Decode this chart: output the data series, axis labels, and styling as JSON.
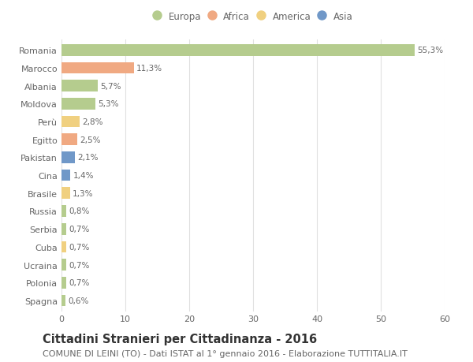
{
  "countries": [
    "Romania",
    "Marocco",
    "Albania",
    "Moldova",
    "Perù",
    "Egitto",
    "Pakistan",
    "Cina",
    "Brasile",
    "Russia",
    "Serbia",
    "Cuba",
    "Ucraina",
    "Polonia",
    "Spagna"
  ],
  "values": [
    55.3,
    11.3,
    5.7,
    5.3,
    2.8,
    2.5,
    2.1,
    1.4,
    1.3,
    0.8,
    0.7,
    0.7,
    0.7,
    0.7,
    0.6
  ],
  "labels": [
    "55,3%",
    "11,3%",
    "5,7%",
    "5,3%",
    "2,8%",
    "2,5%",
    "2,1%",
    "1,4%",
    "1,3%",
    "0,8%",
    "0,7%",
    "0,7%",
    "0,7%",
    "0,7%",
    "0,6%"
  ],
  "continents": [
    "Europa",
    "Africa",
    "Europa",
    "Europa",
    "America",
    "Africa",
    "Asia",
    "Asia",
    "America",
    "Europa",
    "Europa",
    "America",
    "Europa",
    "Europa",
    "Europa"
  ],
  "continent_colors": {
    "Europa": "#b5cc8e",
    "Africa": "#f0a982",
    "America": "#f0d080",
    "Asia": "#7098c8"
  },
  "legend_order": [
    "Europa",
    "Africa",
    "America",
    "Asia"
  ],
  "title": "Cittadini Stranieri per Cittadinanza - 2016",
  "subtitle": "COMUNE DI LEINI (TO) - Dati ISTAT al 1° gennaio 2016 - Elaborazione TUTTITALIA.IT",
  "xlim": [
    0,
    60
  ],
  "xticks": [
    0,
    10,
    20,
    30,
    40,
    50,
    60
  ],
  "bg_color": "#ffffff",
  "grid_color": "#e0e0e0",
  "bar_height": 0.65,
  "title_fontsize": 10.5,
  "subtitle_fontsize": 8,
  "label_fontsize": 7.5,
  "tick_fontsize": 8,
  "legend_fontsize": 8.5
}
